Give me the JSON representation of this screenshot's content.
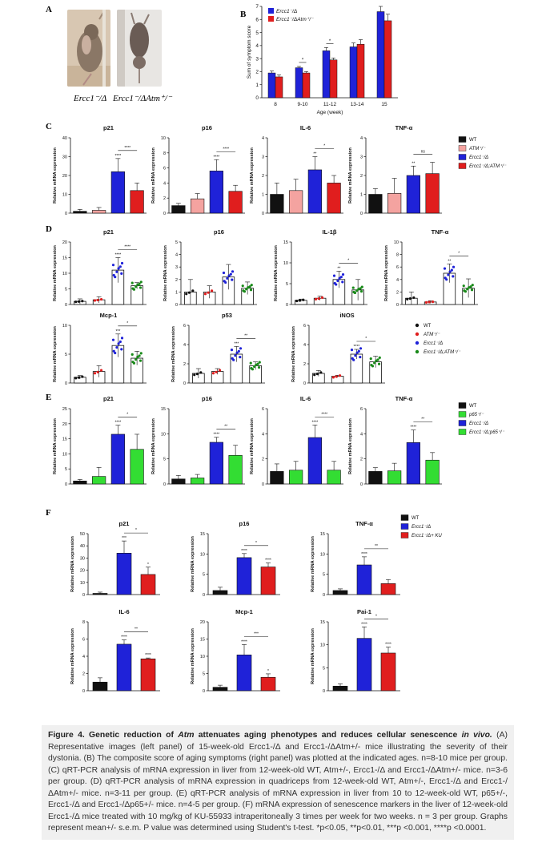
{
  "panels": {
    "a": "A",
    "b": "B",
    "c": "C",
    "d": "D",
    "e": "E",
    "f": "F"
  },
  "photos": {
    "left_caption": "Ercc1⁻/Δ",
    "right_caption": "Ercc1⁻/ΔAtm⁺/⁻"
  },
  "caption": {
    "title_a": "Figure 4. Genetic reduction of ",
    "title_gene": "Atm",
    "title_b": " attenuates aging phenotypes and reduces cellular senescence ",
    "title_c": "in vivo.",
    "body": "(A) Representative images (left panel) of 15-week-old Ercc1-/Δ and Ercc1-/ΔAtm+/- mice illustrating the severity of their dystonia. (B) The composite score of aging symptoms (right panel) was plotted at the indicated ages. n=8-10 mice per group. (C) qRT-PCR analysis of mRNA expression in liver from 12-week-old WT, Atm+/-, Ercc1-/Δ and Ercc1-/ΔAtm+/- mice. n=3-6 per group. (D) qRT-PCR analysis of mRNA expression in quadriceps from 12-week-old WT, Atm+/-, Ercc1-/Δ and Ercc1-/ΔAtm+/- mice. n=3-11 per group. (E) qRT-PCR analysis of mRNA expression in liver from 10 to 12-week-old WT, p65+/-, Ercc1-/Δ and Ercc1-/Δp65+/- mice. n=4-5 per group. (F) mRNA expression of senescence markers in the liver of 12-week-old Ercc1-/Δ mice treated with 10 mg/kg of KU-55933 intraperitoneally 3 times per week for two weeks. n = 3 per group. Graphs represent mean+/- s.e.m. P value was determined using Student's t-test. *p<0.05, **p<0.01, ***p <0.001, ****p <0.0001."
  },
  "colors": {
    "black": "#111111",
    "pink": "#f4a3a0",
    "blue": "#1f22d8",
    "red": "#e01e1e",
    "green": "#33dd33",
    "green_dot": "#1a8a1a",
    "grey_bar": "#000000"
  },
  "legends": {
    "b": [
      "Ercc1⁻/Δ",
      "Ercc1⁻/ΔAtm⁺/⁻"
    ],
    "c": [
      "WT",
      "ATM⁺/⁻",
      "Ercc1⁻/Δ",
      "Ercc1⁻/Δ;ATM⁺/⁻"
    ],
    "d": [
      "WT",
      "ATM⁺/⁻",
      "Ercc1⁻/Δ",
      "Ercc1⁻/Δ;ATM⁺/⁻"
    ],
    "e": [
      "WT",
      "p65⁺/⁻",
      "Ercc1⁻/Δ",
      "Ercc1⁻/Δ;p65⁺/⁻"
    ],
    "f": [
      "WT",
      "Ercc1⁻/Δ",
      "Ercc1⁻/Δ+ KU"
    ]
  },
  "chart_data": [
    {
      "id": "B",
      "type": "bar",
      "ylabel": "Sum of symptom score",
      "xlabel": "Age (week)",
      "categories": [
        "8",
        "9-10",
        "11-12",
        "13-14",
        "15"
      ],
      "ylim": [
        0,
        7
      ],
      "yticks": [
        0,
        1,
        2,
        3,
        4,
        5,
        6,
        7
      ],
      "series": [
        {
          "name": "Ercc1⁻/Δ",
          "values": [
            1.9,
            2.3,
            3.6,
            3.9,
            6.6
          ],
          "err": [
            0.15,
            0.1,
            0.25,
            0.3,
            0.4
          ]
        },
        {
          "name": "Ercc1⁻/ΔAtm⁺/⁻",
          "values": [
            1.6,
            1.9,
            2.9,
            4.1,
            5.9
          ],
          "err": [
            0.15,
            0.1,
            0.15,
            0.35,
            0.5
          ]
        }
      ],
      "sig": [
        {
          "cat": 1,
          "label": "*"
        },
        {
          "cat": 2,
          "label": "*"
        }
      ]
    },
    {
      "id": "C-p21",
      "type": "bar",
      "title": "p21",
      "ylabel": "Relative mRNA expression",
      "ylim": [
        0,
        40
      ],
      "yticks": [
        0,
        10,
        20,
        30,
        40
      ],
      "values": [
        1,
        1.5,
        22,
        12
      ],
      "err": [
        1,
        1.5,
        7,
        4
      ],
      "marks": [
        "",
        "",
        "****",
        ""
      ],
      "sig": {
        "from": 2,
        "to": 3,
        "label": "****"
      }
    },
    {
      "id": "C-p16",
      "type": "bar",
      "title": "p16",
      "ylabel": "Relative mRNA expression",
      "ylim": [
        0,
        10
      ],
      "yticks": [
        0,
        2,
        4,
        6,
        8,
        10
      ],
      "values": [
        1,
        1.9,
        5.6,
        2.9
      ],
      "err": [
        0.3,
        0.7,
        1.5,
        0.8
      ],
      "marks": [
        "",
        "",
        "****",
        ""
      ],
      "sig": {
        "from": 2,
        "to": 3,
        "label": "****"
      }
    },
    {
      "id": "C-IL6",
      "type": "bar",
      "title": "IL-6",
      "ylabel": "Relative mRNA expression",
      "ylim": [
        0,
        4
      ],
      "yticks": [
        0,
        1,
        2,
        3,
        4
      ],
      "values": [
        1,
        1.2,
        2.3,
        1.6
      ],
      "err": [
        0.6,
        0.6,
        0.7,
        0.4
      ],
      "marks": [
        "",
        "",
        "**",
        ""
      ],
      "sig": {
        "from": 2,
        "to": 3,
        "label": "*"
      }
    },
    {
      "id": "C-TNF",
      "type": "bar",
      "title": "TNF-α",
      "ylabel": "Relative mRNA expression",
      "ylim": [
        0,
        4
      ],
      "yticks": [
        0,
        1,
        2,
        3,
        4
      ],
      "values": [
        1,
        1.05,
        2,
        2.1
      ],
      "err": [
        0.3,
        0.8,
        0.5,
        0.6
      ],
      "marks": [
        "",
        "",
        "**",
        ""
      ],
      "sig": {
        "from": 2,
        "to": 3,
        "label": "ns"
      }
    },
    {
      "id": "D-p21",
      "type": "dot",
      "title": "p21",
      "ylabel": "Relative mRNA expression",
      "ylim": [
        0,
        20
      ],
      "yticks": [
        0,
        5,
        10,
        15,
        20
      ],
      "values": [
        1,
        1.5,
        11,
        6
      ],
      "err": [
        0.8,
        1,
        4,
        1
      ],
      "marks": [
        "",
        "",
        "****",
        ""
      ],
      "sig": {
        "from": 2,
        "to": 3,
        "label": "****"
      }
    },
    {
      "id": "D-p16",
      "type": "dot",
      "title": "p16",
      "ylabel": "Relative mRNA expression",
      "ylim": [
        0,
        5
      ],
      "yticks": [
        0,
        1,
        2,
        3,
        4,
        5
      ],
      "values": [
        1,
        1,
        2.2,
        1.3
      ],
      "err": [
        1,
        0.5,
        1,
        0.5
      ],
      "marks": [
        "",
        "",
        "",
        ""
      ]
    },
    {
      "id": "D-IL1b",
      "type": "dot",
      "title": "IL-1β",
      "ylabel": "Relative mRNA expression",
      "ylim": [
        0,
        15
      ],
      "yticks": [
        0,
        5,
        10,
        15
      ],
      "values": [
        1,
        1.5,
        6,
        3.5
      ],
      "err": [
        0.3,
        0.5,
        2,
        2.5
      ],
      "marks": [
        "",
        "",
        "**",
        ""
      ],
      "sig": {
        "from": 2,
        "to": 3,
        "label": "*"
      }
    },
    {
      "id": "D-TNF",
      "type": "dot",
      "title": "TNF-α",
      "ylabel": "Relative mRNA expression",
      "ylim": [
        0,
        10
      ],
      "yticks": [
        0,
        2,
        4,
        6,
        8,
        10
      ],
      "values": [
        1,
        0.4,
        5,
        2.6
      ],
      "err": [
        1,
        0.2,
        1.5,
        1.5
      ],
      "marks": [
        "",
        "",
        "**",
        ""
      ],
      "sig": {
        "from": 2,
        "to": 3,
        "label": "*"
      }
    },
    {
      "id": "D-Mcp1",
      "type": "dot",
      "title": "Mcp-1",
      "ylabel": "Relative mRNA expression",
      "ylim": [
        0,
        10
      ],
      "yticks": [
        0,
        5,
        10
      ],
      "values": [
        1,
        2,
        6.5,
        4.3
      ],
      "err": [
        0.3,
        1,
        2,
        1.2
      ],
      "marks": [
        "",
        "",
        "***",
        ""
      ],
      "sig": {
        "from": 2,
        "to": 3,
        "label": "*"
      }
    },
    {
      "id": "D-p53",
      "type": "dot",
      "title": "p53",
      "ylabel": "Relative mRNA expression",
      "ylim": [
        0,
        6
      ],
      "yticks": [
        0,
        2,
        4,
        6
      ],
      "values": [
        1,
        1.2,
        3,
        1.8
      ],
      "err": [
        0.5,
        0.3,
        0.8,
        0.4
      ],
      "marks": [
        "",
        "",
        "***",
        ""
      ],
      "sig": {
        "from": 2,
        "to": 3,
        "label": "**"
      }
    },
    {
      "id": "D-iNOS",
      "type": "dot",
      "title": "iNOS",
      "ylabel": "Relative mRNA expression",
      "ylim": [
        0,
        6
      ],
      "yticks": [
        0,
        2,
        4,
        6
      ],
      "values": [
        1,
        0.7,
        3,
        2.2
      ],
      "err": [
        0.3,
        0.1,
        0.5,
        0.6
      ],
      "marks": [
        "",
        "",
        "****",
        ""
      ],
      "sig": {
        "from": 2,
        "to": 3,
        "label": "*"
      }
    },
    {
      "id": "E-p21",
      "type": "bar",
      "title": "p21",
      "ylabel": "Relative mRNA expression",
      "ylim": [
        0,
        25
      ],
      "yticks": [
        0,
        5,
        10,
        15,
        20,
        25
      ],
      "values": [
        1,
        2.5,
        16.5,
        11.5
      ],
      "err": [
        0.5,
        3,
        3,
        5
      ],
      "marks": [
        "",
        "",
        "****",
        ""
      ],
      "sig": {
        "from": 2,
        "to": 3,
        "label": "*"
      }
    },
    {
      "id": "E-p16",
      "type": "bar",
      "title": "p16",
      "ylabel": "Relative mRNA expression",
      "ylim": [
        0,
        15
      ],
      "yticks": [
        0,
        5,
        10,
        15
      ],
      "values": [
        1,
        1.2,
        8.3,
        5.7
      ],
      "err": [
        0.7,
        0.7,
        1,
        2
      ],
      "marks": [
        "",
        "",
        "****",
        ""
      ],
      "sig": {
        "from": 2,
        "to": 3,
        "label": "**"
      }
    },
    {
      "id": "E-IL6",
      "type": "bar",
      "title": "IL-6",
      "ylabel": "Relative mRNA expression",
      "ylim": [
        0,
        6
      ],
      "yticks": [
        0,
        2,
        4,
        6
      ],
      "values": [
        1,
        1.1,
        3.7,
        1.1
      ],
      "err": [
        0.6,
        0.7,
        1,
        0.7
      ],
      "marks": [
        "",
        "",
        "****",
        ""
      ],
      "sig": {
        "from": 2,
        "to": 3,
        "label": "****"
      }
    },
    {
      "id": "E-TNF",
      "type": "bar",
      "title": "TNF-α",
      "ylabel": "Relative mRNA expression",
      "ylim": [
        0,
        6
      ],
      "yticks": [
        0,
        2,
        4,
        6
      ],
      "values": [
        1,
        1.05,
        3.3,
        1.9
      ],
      "err": [
        0.3,
        0.6,
        1,
        0.6
      ],
      "marks": [
        "",
        "",
        "****",
        ""
      ],
      "sig": {
        "from": 2,
        "to": 3,
        "label": "**"
      }
    },
    {
      "id": "F-p21",
      "type": "bar",
      "title": "p21",
      "ylabel": "Relative mRNA expression",
      "ylim": [
        0,
        50
      ],
      "yticks": [
        0,
        10,
        20,
        30,
        40,
        50
      ],
      "values": [
        1,
        34,
        16.5
      ],
      "err": [
        1,
        10,
        6
      ],
      "marks": [
        "",
        "***",
        "*"
      ],
      "sig": {
        "from": 1,
        "to": 2,
        "label": "*"
      }
    },
    {
      "id": "F-p16",
      "type": "bar",
      "title": "p16",
      "ylabel": "Relative mRNA expression",
      "ylim": [
        0,
        15
      ],
      "yticks": [
        0,
        5,
        10,
        15
      ],
      "values": [
        1,
        9.1,
        6.8
      ],
      "err": [
        0.8,
        1,
        1
      ],
      "marks": [
        "",
        "****",
        "****"
      ],
      "sig": {
        "from": 1,
        "to": 2,
        "label": "*"
      }
    },
    {
      "id": "F-TNF",
      "type": "bar",
      "title": "TNF-α",
      "ylabel": "Relative mRNA expression",
      "ylim": [
        0,
        15
      ],
      "yticks": [
        0,
        5,
        10,
        15
      ],
      "values": [
        1,
        7.3,
        2.7
      ],
      "err": [
        0.4,
        2,
        1
      ],
      "marks": [
        "",
        "****",
        ""
      ],
      "sig": {
        "from": 1,
        "to": 2,
        "label": "**"
      }
    },
    {
      "id": "F-IL6",
      "type": "bar",
      "title": "IL-6",
      "ylabel": "Relative mRNA expression",
      "ylim": [
        0,
        8
      ],
      "yticks": [
        0,
        2,
        4,
        6,
        8
      ],
      "values": [
        1,
        5.4,
        3.7
      ],
      "err": [
        0.5,
        0.5,
        0.1
      ],
      "marks": [
        "",
        "****",
        "****"
      ],
      "sig": {
        "from": 1,
        "to": 2,
        "label": "**"
      }
    },
    {
      "id": "F-Mcp1",
      "type": "bar",
      "title": "Mcp-1",
      "ylabel": "Relative mRNA expression",
      "ylim": [
        0,
        20
      ],
      "yticks": [
        0,
        5,
        10,
        15,
        20
      ],
      "values": [
        1,
        10.4,
        3.9
      ],
      "err": [
        0.6,
        3,
        1
      ],
      "marks": [
        "",
        "****",
        "*"
      ],
      "sig": {
        "from": 1,
        "to": 2,
        "label": "***"
      }
    },
    {
      "id": "F-Pai1",
      "type": "bar",
      "title": "Pai-1",
      "ylabel": "Relative mRNA expression",
      "ylim": [
        0,
        15
      ],
      "yticks": [
        0,
        5,
        10,
        15
      ],
      "values": [
        1,
        11.4,
        8.2
      ],
      "err": [
        0.5,
        2.5,
        1.3
      ],
      "marks": [
        "",
        "****",
        "****"
      ],
      "sig": {
        "from": 1,
        "to": 2,
        "label": "*"
      }
    }
  ]
}
